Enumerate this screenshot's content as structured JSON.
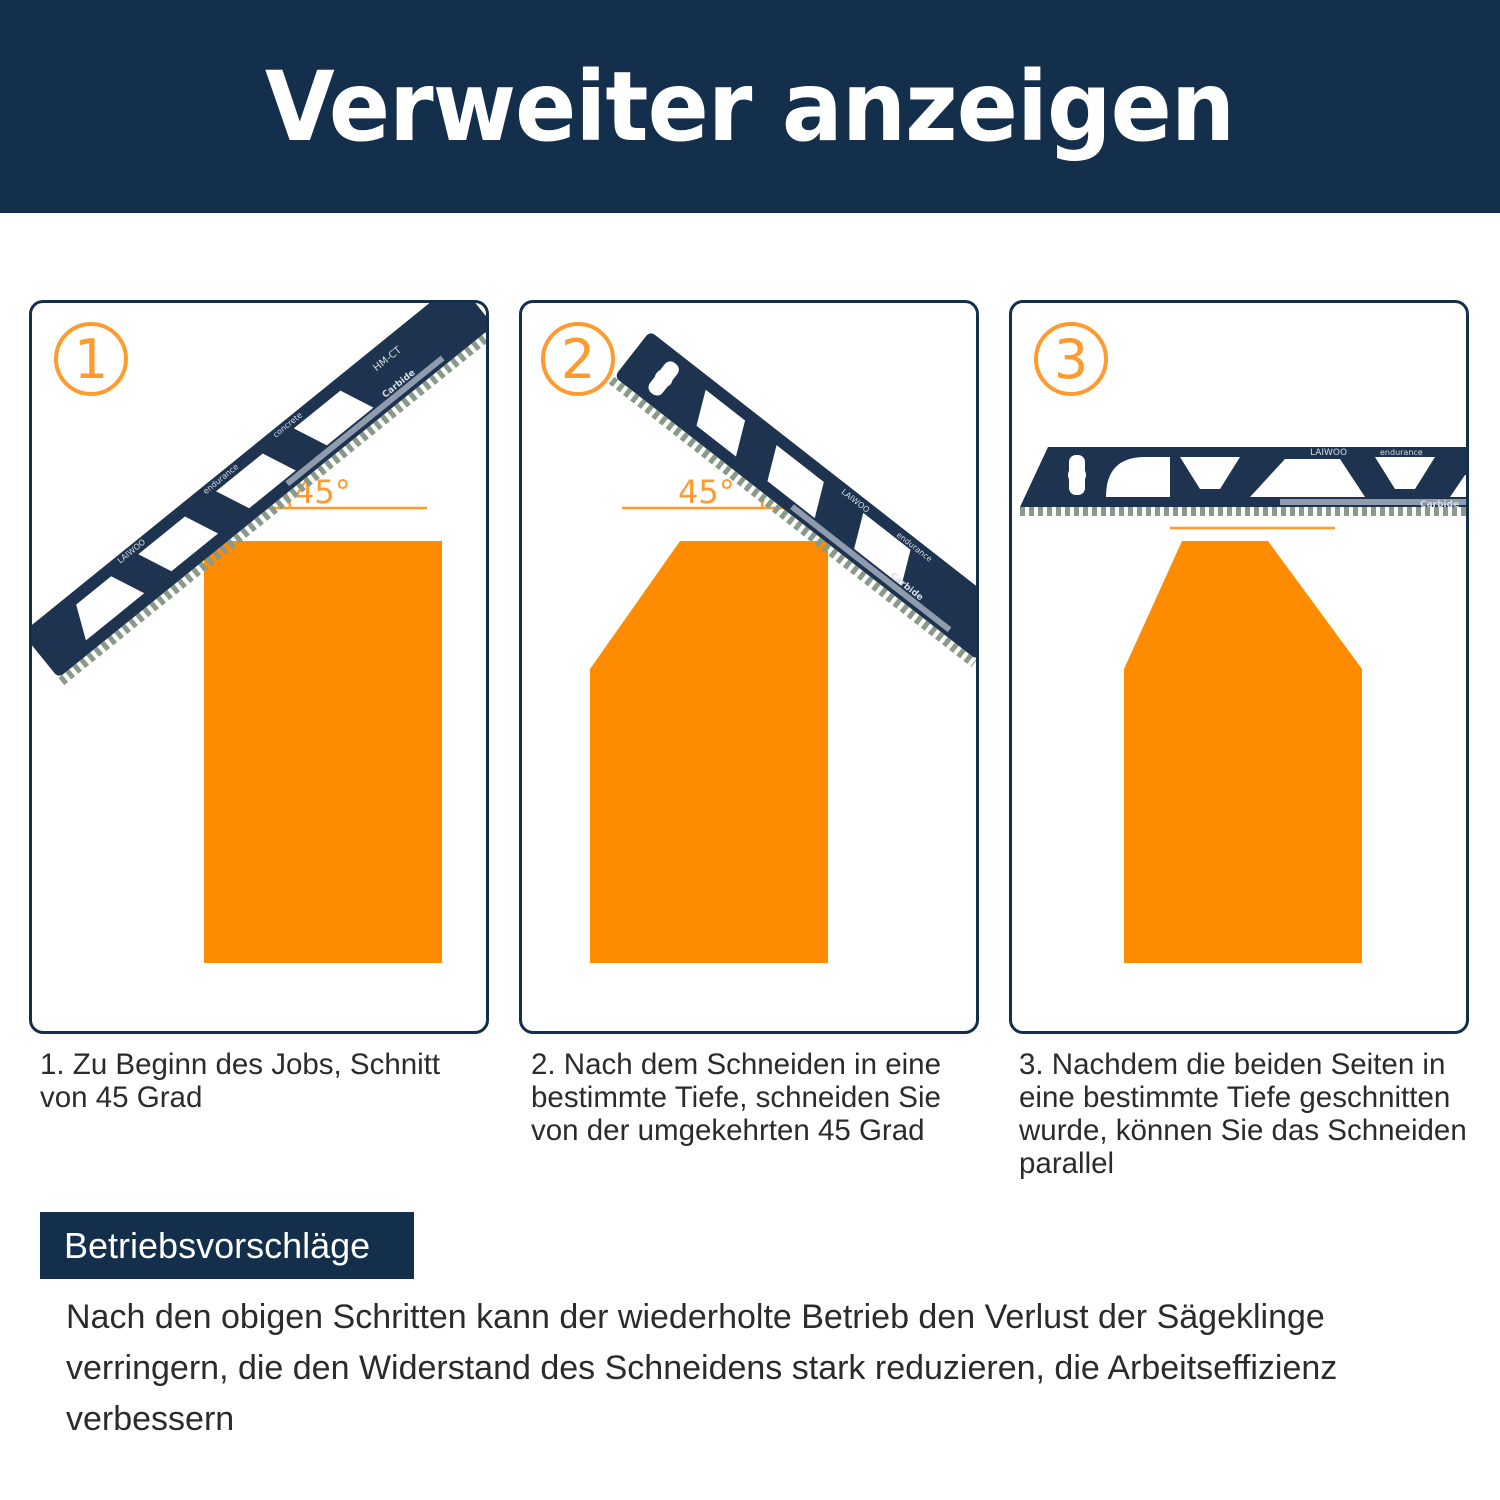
{
  "header": {
    "title": "Verweiter anzeigen"
  },
  "colors": {
    "navy": "#132f4c",
    "orange": "#ff8c00",
    "blade": "#1d3350",
    "teeth": "#7a8b80"
  },
  "steps": [
    {
      "badge": "1",
      "angle_label": "45°",
      "caption": "1. Zu Beginn des Jobs, Schnitt von 45 Grad"
    },
    {
      "badge": "2",
      "angle_label": "45°",
      "caption": "2. Nach dem Schneiden in eine bestimmte Tiefe, schneiden Sie von der umgekehrten 45 Grad"
    },
    {
      "badge": "3",
      "caption": "3. Nachdem die beiden Seiten in eine bestimmte Tiefe geschnitten wurde, können Sie das Schneiden parallel"
    }
  ],
  "blade": {
    "brand": "LAIWOO",
    "line": "endurance",
    "type": "Carbide",
    "use": "concrete",
    "spec": "HM-CT"
  },
  "tips": {
    "label": "Betriebsvorschläge",
    "text": "Nach den obigen Schritten kann der wiederholte Betrieb den Verlust der Sägeklinge verringern, die den Widerstand des Schneidens stark reduzieren, die Arbeitseffizienz verbessern"
  }
}
